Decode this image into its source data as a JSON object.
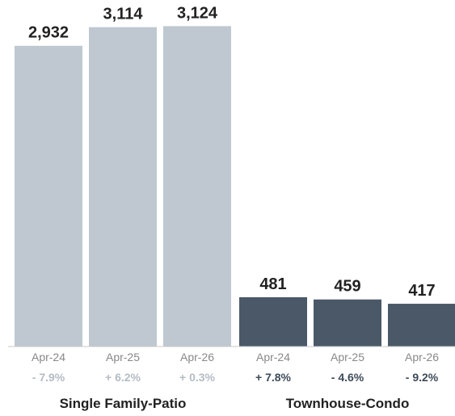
{
  "chart_data": {
    "type": "bar",
    "ylim": [
      0,
      3300
    ],
    "groups": [
      {
        "name": "Single Family-Patio",
        "color": "#bfc8d0",
        "change_color": "#b4bcc4",
        "bars": [
          {
            "label": "Apr-24",
            "value": 2932,
            "display": "2,932",
            "change": "- 7.9%"
          },
          {
            "label": "Apr-25",
            "value": 3114,
            "display": "3,114",
            "change": "+ 6.2%"
          },
          {
            "label": "Apr-26",
            "value": 3124,
            "display": "3,124",
            "change": "+ 0.3%"
          }
        ]
      },
      {
        "name": "Townhouse-Condo",
        "color": "#4a5868",
        "change_color": "#3e4a58",
        "bars": [
          {
            "label": "Apr-24",
            "value": 481,
            "display": "481",
            "change": "+ 7.8%"
          },
          {
            "label": "Apr-25",
            "value": 459,
            "display": "459",
            "change": "- 4.6%"
          },
          {
            "label": "Apr-26",
            "value": 417,
            "display": "417",
            "change": "- 9.2%"
          }
        ]
      }
    ]
  }
}
